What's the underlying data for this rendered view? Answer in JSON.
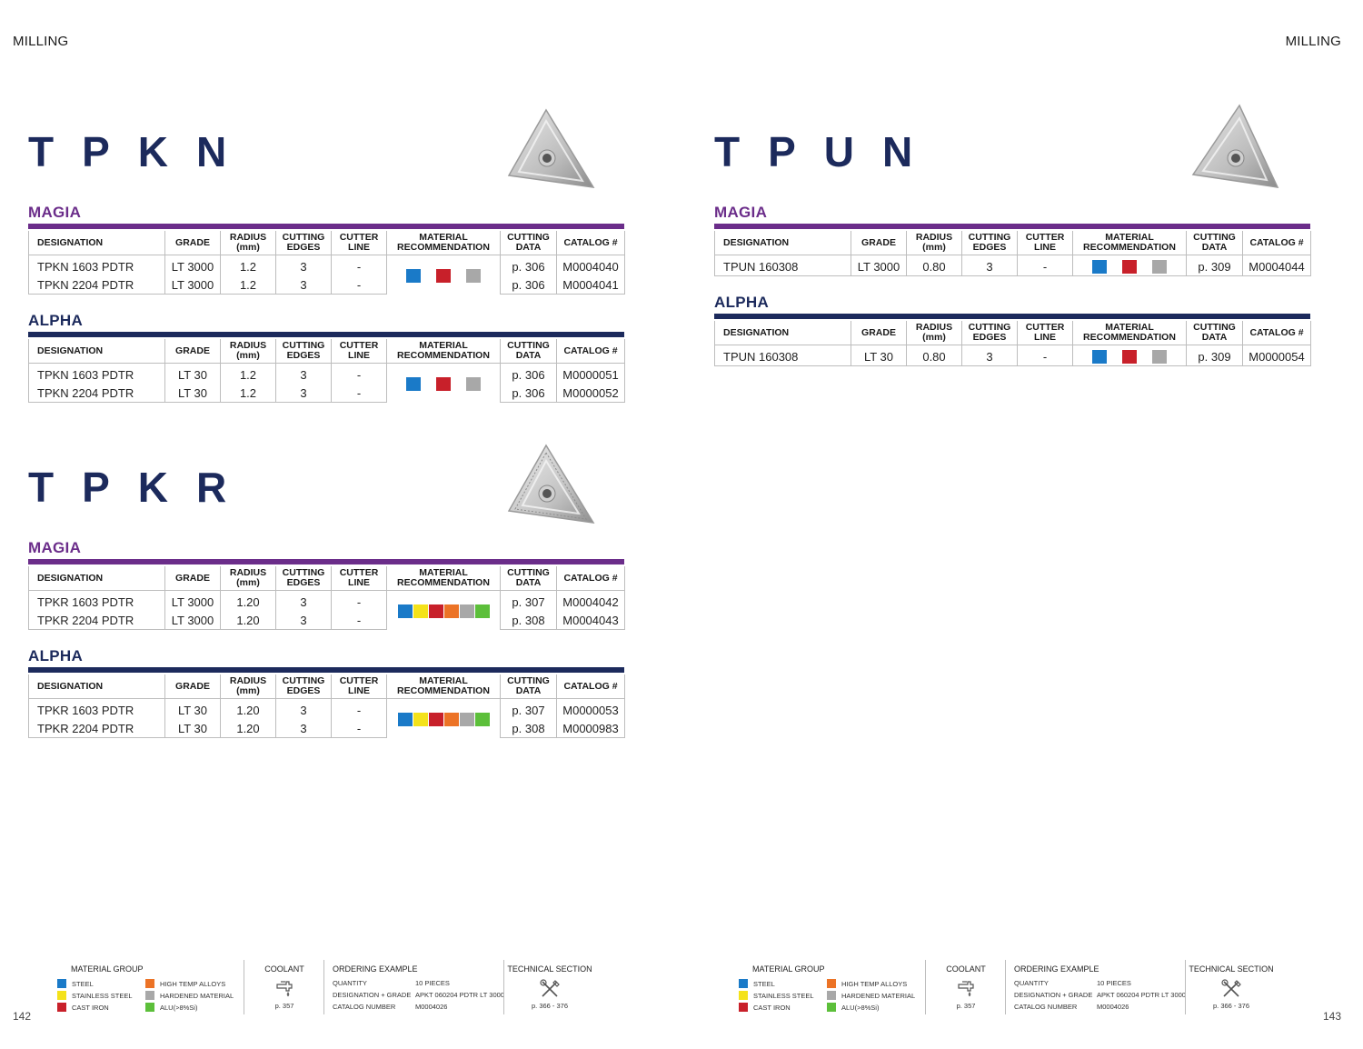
{
  "running_head": "MILLING",
  "colors": {
    "steel": "#1a7ac8",
    "stainless_steel": "#f4e21a",
    "cast_iron": "#c8202a",
    "high_temp_alloys": "#ec7326",
    "hardened_material": "#a8a8a8",
    "alu": "#5cbf3a",
    "magia": "#6b2d8a",
    "alpha": "#1c2a5c"
  },
  "columns": [
    "DESIGNATION",
    "GRADE",
    "RADIUS (mm)",
    "CUTTING EDGES",
    "CUTTER LINE",
    "MATERIAL RECOMMENDATION",
    "CUTTING DATA",
    "CATALOG #"
  ],
  "pages": [
    {
      "number": "142",
      "products": [
        {
          "title": "TPKN",
          "series": [
            {
              "name": "MAGIA",
              "materials": [
                "steel",
                "cast_iron",
                "hardened_material"
              ],
              "rows": [
                {
                  "designation": "TPKN 1603 PDTR",
                  "grade": "LT 3000",
                  "radius": "1.2",
                  "edges": "3",
                  "cutter_line": "-",
                  "cutting_data": "p. 306",
                  "catalog": "M0004040"
                },
                {
                  "designation": "TPKN 2204 PDTR",
                  "grade": "LT 3000",
                  "radius": "1.2",
                  "edges": "3",
                  "cutter_line": "-",
                  "cutting_data": "p. 306",
                  "catalog": "M0004041"
                }
              ]
            },
            {
              "name": "ALPHA",
              "materials": [
                "steel",
                "cast_iron",
                "hardened_material"
              ],
              "rows": [
                {
                  "designation": "TPKN 1603 PDTR",
                  "grade": "LT 30",
                  "radius": "1.2",
                  "edges": "3",
                  "cutter_line": "-",
                  "cutting_data": "p. 306",
                  "catalog": "M0000051"
                },
                {
                  "designation": "TPKN 2204 PDTR",
                  "grade": "LT 30",
                  "radius": "1.2",
                  "edges": "3",
                  "cutter_line": "-",
                  "cutting_data": "p. 306",
                  "catalog": "M0000052"
                }
              ]
            }
          ]
        },
        {
          "title": "TPKR",
          "series": [
            {
              "name": "MAGIA",
              "materials": [
                "steel",
                "stainless_steel",
                "cast_iron",
                "high_temp_alloys",
                "hardened_material",
                "alu"
              ],
              "rows": [
                {
                  "designation": "TPKR 1603 PDTR",
                  "grade": "LT 3000",
                  "radius": "1.20",
                  "edges": "3",
                  "cutter_line": "-",
                  "cutting_data": "p. 307",
                  "catalog": "M0004042"
                },
                {
                  "designation": "TPKR 2204 PDTR",
                  "grade": "LT 3000",
                  "radius": "1.20",
                  "edges": "3",
                  "cutter_line": "-",
                  "cutting_data": "p. 308",
                  "catalog": "M0004043"
                }
              ]
            },
            {
              "name": "ALPHA",
              "materials": [
                "steel",
                "stainless_steel",
                "cast_iron",
                "high_temp_alloys",
                "hardened_material",
                "alu"
              ],
              "rows": [
                {
                  "designation": "TPKR 1603 PDTR",
                  "grade": "LT 30",
                  "radius": "1.20",
                  "edges": "3",
                  "cutter_line": "-",
                  "cutting_data": "p. 307",
                  "catalog": "M0000053"
                },
                {
                  "designation": "TPKR 2204 PDTR",
                  "grade": "LT 30",
                  "radius": "1.20",
                  "edges": "3",
                  "cutter_line": "-",
                  "cutting_data": "p. 308",
                  "catalog": "M0000983"
                }
              ]
            }
          ]
        }
      ]
    },
    {
      "number": "143",
      "products": [
        {
          "title": "TPUN",
          "series": [
            {
              "name": "MAGIA",
              "materials": [
                "steel",
                "cast_iron",
                "hardened_material"
              ],
              "rows": [
                {
                  "designation": "TPUN 160308",
                  "grade": "LT 3000",
                  "radius": "0.80",
                  "edges": "3",
                  "cutter_line": "-",
                  "cutting_data": "p. 309",
                  "catalog": "M0004044"
                }
              ]
            },
            {
              "name": "ALPHA",
              "materials": [
                "steel",
                "cast_iron",
                "hardened_material"
              ],
              "rows": [
                {
                  "designation": "TPUN 160308",
                  "grade": "LT 30",
                  "radius": "0.80",
                  "edges": "3",
                  "cutter_line": "-",
                  "cutting_data": "p. 309",
                  "catalog": "M0000054"
                }
              ]
            }
          ]
        }
      ]
    }
  ],
  "legend": {
    "material_group_title": "MATERIAL GROUP",
    "material_groups": [
      {
        "key": "steel",
        "label": "STEEL"
      },
      {
        "key": "stainless_steel",
        "label": "STAINLESS STEEL"
      },
      {
        "key": "cast_iron",
        "label": "CAST IRON"
      },
      {
        "key": "high_temp_alloys",
        "label": "HIGH TEMP ALLOYS"
      },
      {
        "key": "hardened_material",
        "label": "HARDENED MATERIAL"
      },
      {
        "key": "alu",
        "label": "ALU(>8%Si)"
      }
    ],
    "coolant_title": "COOLANT",
    "coolant_icon": "coolant-tap-icon",
    "coolant_page": "p. 357",
    "ordering_title": "ORDERING EXAMPLE",
    "ordering": [
      {
        "label": "QUANTITY",
        "value": "10 PIECES"
      },
      {
        "label": "DESIGNATION + GRADE",
        "value": "APKT 060204 PDTR LT 3000"
      },
      {
        "label": "CATALOG NUMBER",
        "value": "M0004026"
      }
    ],
    "technical_title": "TECHNICAL SECTION",
    "technical_icon": "tools-icon",
    "technical_pages": "p. 366 - 376"
  }
}
